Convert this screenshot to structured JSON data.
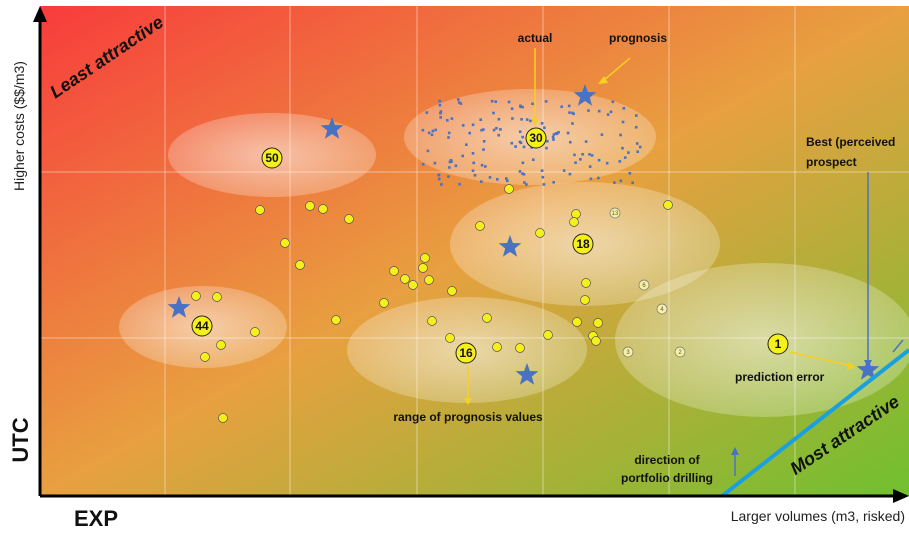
{
  "axes": {
    "y_title": "Higher costs ($$/m3)",
    "y_short": "UTC",
    "x_title": "Larger volumes (m3, risked)",
    "x_short": "EXP"
  },
  "corners": {
    "least": "Least attractive",
    "most": "Most attractive"
  },
  "annotations": {
    "actual": "actual",
    "prognosis": "prognosis",
    "best_line1": "Best (perceived",
    "best_line2": "prospect",
    "prediction_error": "prediction error",
    "range": "range of prognosis values",
    "direction_line1": "direction of",
    "direction_line2": "portfolio drilling"
  },
  "clusters": [
    {
      "label": "50"
    },
    {
      "label": "30"
    },
    {
      "label": "18"
    },
    {
      "label": "44"
    },
    {
      "label": "16"
    },
    {
      "label": "1"
    }
  ],
  "small_markers": [
    "13",
    "6",
    "4",
    "3",
    "2"
  ],
  "colors": {
    "gradient_top_left": "#f83c3c",
    "gradient_mid": "#e8a040",
    "gradient_bottom_right": "#70c030",
    "star": "#4a72c4",
    "dot": "#f6f01a",
    "scatter": "#4a72c4",
    "frontier": "#1aa0e0"
  }
}
